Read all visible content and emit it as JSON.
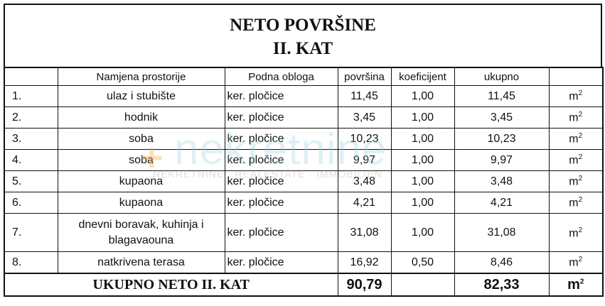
{
  "title": {
    "line1": "NETO POVRŠINE",
    "line2": "II. KAT"
  },
  "headers": [
    "",
    "Namjena prostorije",
    "Podna obloga",
    "površina",
    "koeficijent",
    "ukupno",
    ""
  ],
  "rows": [
    {
      "no": "1.",
      "name": "ulaz i stubište",
      "floor": "ker. pločice",
      "area": "11,45",
      "coef": "1,00",
      "total": "11,45",
      "unit": "m",
      "exp": "2"
    },
    {
      "no": "2.",
      "name": "hodnik",
      "floor": "ker. pločice",
      "area": "3,45",
      "coef": "1,00",
      "total": "3,45",
      "unit": "m",
      "exp": "2"
    },
    {
      "no": "3.",
      "name": "soba",
      "floor": "ker. pločice",
      "area": "10,23",
      "coef": "1,00",
      "total": "10,23",
      "unit": "m",
      "exp": "2"
    },
    {
      "no": "4.",
      "name": "soba",
      "floor": "ker. pločice",
      "area": "9,97",
      "coef": "1,00",
      "total": "9,97",
      "unit": "m",
      "exp": "2"
    },
    {
      "no": "5.",
      "name": "kupaona",
      "floor": "ker. pločice",
      "area": "3,48",
      "coef": "1,00",
      "total": "3,48",
      "unit": "m",
      "exp": "2"
    },
    {
      "no": "6.",
      "name": "kupaona",
      "floor": "ker. pločice",
      "area": "4,21",
      "coef": "1,00",
      "total": "4,21",
      "unit": "m",
      "exp": "2"
    },
    {
      "no": "7.",
      "name": "dnevni boravak, kuhinja i blagavaouna",
      "floor": "ker. pločice",
      "area": "31,08",
      "coef": "1,00",
      "total": "31,08",
      "unit": "m",
      "exp": "2"
    },
    {
      "no": "8.",
      "name": "natkrivena terasa",
      "floor": "ker. pločice",
      "area": "16,92",
      "coef": "0,50",
      "total": "8,46",
      "unit": "m",
      "exp": "2"
    }
  ],
  "total": {
    "label": "UKUPNO NETO II. KAT",
    "area": "90,79",
    "total": "82,33",
    "unit": "m",
    "exp": "2"
  },
  "watermark": {
    "logo": "nekretnine",
    "tagline": "NEKRETNINE · REALESTATE · IMMOBILIEN"
  }
}
